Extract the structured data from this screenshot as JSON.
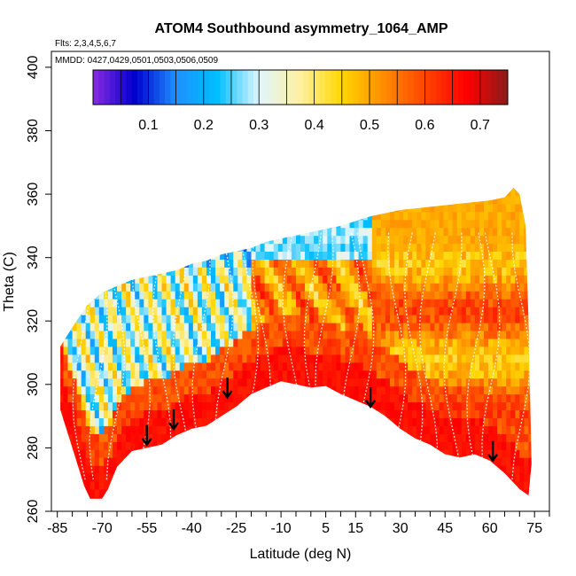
{
  "chart_data": {
    "type": "heatmap",
    "title": "ATOM4 Southbound asymmetry_1064_AMP",
    "flights_text": "Flts: 2,3,4,5,6,7",
    "mmdd_text": "MMDD: 0427,0429,0501,0503,0506,0509",
    "xlabel": "Latitude (deg N)",
    "ylabel": "Theta (C)",
    "xlim": [
      -87,
      80
    ],
    "ylim": [
      260,
      405
    ],
    "x_ticks": [
      -85,
      -70,
      -55,
      -40,
      -25,
      -10,
      5,
      15,
      30,
      45,
      60,
      75
    ],
    "x_tick_labels": [
      "-85",
      "-70",
      "-55",
      "-40",
      "-25",
      "-10",
      "5",
      "15",
      "30",
      "45",
      "60",
      "75"
    ],
    "x_minor_ticks": [
      -80,
      -75,
      -65,
      -60,
      -50,
      -45,
      -35,
      -30,
      -20,
      -15,
      -5,
      0,
      10,
      20,
      25,
      35,
      40,
      50,
      55,
      65,
      70,
      80
    ],
    "y_ticks": [
      260,
      280,
      300,
      320,
      340,
      360,
      380,
      400
    ],
    "y_tick_labels": [
      "260",
      "280",
      "300",
      "320",
      "340",
      "360",
      "380",
      "400"
    ],
    "colorbar": {
      "range": [
        0.0,
        0.75
      ],
      "ticks": [
        0.1,
        0.2,
        0.3,
        0.4,
        0.5,
        0.6,
        0.7
      ],
      "tick_labels": [
        "0.1",
        "0.2",
        "0.3",
        "0.4",
        "0.5",
        "0.6",
        "0.7"
      ],
      "colors": [
        "#8a2be2",
        "#0000cd",
        "#1e90ff",
        "#00bfff",
        "#e0f6ff",
        "#fff0a0",
        "#ffd700",
        "#ff8c00",
        "#ff4500",
        "#ff0000",
        "#8b1a1a"
      ]
    },
    "upper_boundary": [
      [
        -84,
        312
      ],
      [
        -80,
        318
      ],
      [
        -75,
        325
      ],
      [
        -70,
        329
      ],
      [
        -65,
        331
      ],
      [
        -60,
        333
      ],
      [
        -55,
        334
      ],
      [
        -50,
        335
      ],
      [
        -45,
        336
      ],
      [
        -40,
        338
      ],
      [
        -35,
        339
      ],
      [
        -30,
        341
      ],
      [
        -25,
        342
      ],
      [
        -20,
        343
      ],
      [
        -15,
        345
      ],
      [
        -10,
        346
      ],
      [
        -5,
        347
      ],
      [
        0,
        348
      ],
      [
        5,
        349
      ],
      [
        10,
        350
      ],
      [
        20,
        353
      ],
      [
        30,
        355
      ],
      [
        40,
        356
      ],
      [
        50,
        357
      ],
      [
        60,
        358
      ],
      [
        65,
        359
      ],
      [
        68,
        362
      ],
      [
        70,
        360
      ],
      [
        72,
        350
      ],
      [
        73,
        320
      ],
      [
        74,
        275
      ],
      [
        73,
        265
      ]
    ],
    "lower_boundary": [
      [
        -84,
        292
      ],
      [
        -80,
        280
      ],
      [
        -76,
        268
      ],
      [
        -74,
        264
      ],
      [
        -70,
        264
      ],
      [
        -68,
        267
      ],
      [
        -65,
        274
      ],
      [
        -60,
        279
      ],
      [
        -55,
        280
      ],
      [
        -50,
        281
      ],
      [
        -45,
        284
      ],
      [
        -40,
        286
      ],
      [
        -35,
        287
      ],
      [
        -30,
        290
      ],
      [
        -25,
        293
      ],
      [
        -20,
        297
      ],
      [
        -15,
        299
      ],
      [
        -10,
        301
      ],
      [
        -5,
        300
      ],
      [
        0,
        299
      ],
      [
        5,
        299.5
      ],
      [
        10,
        297
      ],
      [
        15,
        295
      ],
      [
        20,
        293
      ],
      [
        25,
        290
      ],
      [
        30,
        286
      ],
      [
        35,
        283
      ],
      [
        40,
        281
      ],
      [
        45,
        278
      ],
      [
        50,
        277
      ],
      [
        55,
        278
      ],
      [
        60,
        276
      ],
      [
        65,
        272
      ],
      [
        70,
        267
      ],
      [
        73,
        265
      ]
    ],
    "arrows": [
      [
        -55,
        281
      ],
      [
        -46,
        286
      ],
      [
        -28,
        296
      ],
      [
        20,
        293
      ],
      [
        61,
        276
      ]
    ]
  }
}
